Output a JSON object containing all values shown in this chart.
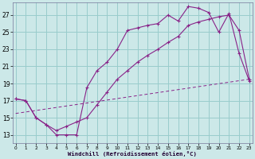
{
  "background_color": "#cce8e8",
  "grid_color": "#99cccc",
  "line_color": "#882288",
  "xlim": [
    -0.3,
    23.3
  ],
  "ylim": [
    12.0,
    28.5
  ],
  "xticks": [
    0,
    1,
    2,
    3,
    4,
    5,
    6,
    7,
    8,
    9,
    10,
    11,
    12,
    13,
    14,
    15,
    16,
    17,
    18,
    19,
    20,
    21,
    22,
    23
  ],
  "yticks": [
    13,
    15,
    17,
    19,
    21,
    23,
    25,
    27
  ],
  "xlabel": "Windchill (Refroidissement éolien,°C)",
  "line1_x": [
    0,
    1,
    2,
    3,
    4,
    5,
    6,
    7,
    8,
    9,
    10,
    11,
    12,
    13,
    14,
    15,
    16,
    17,
    18,
    19,
    20,
    21,
    22,
    23
  ],
  "line1_y": [
    17.2,
    17.0,
    15.0,
    14.2,
    13.0,
    13.0,
    13.0,
    18.5,
    20.5,
    21.5,
    23.0,
    25.2,
    25.5,
    25.8,
    26.0,
    27.0,
    26.3,
    28.0,
    27.8,
    27.3,
    25.0,
    27.2,
    22.5,
    19.3
  ],
  "line2_x": [
    0,
    1,
    2,
    3,
    4,
    5,
    6,
    7,
    8,
    9,
    10,
    11,
    12,
    13,
    14,
    15,
    16,
    17,
    18,
    19,
    20,
    21,
    22,
    23
  ],
  "line2_y": [
    17.2,
    17.0,
    15.0,
    14.2,
    13.5,
    14.0,
    14.5,
    15.0,
    16.5,
    18.0,
    19.5,
    20.5,
    21.5,
    22.3,
    23.0,
    23.8,
    24.5,
    25.8,
    26.2,
    26.5,
    26.8,
    27.0,
    25.2,
    19.5
  ],
  "line3_x": [
    0,
    23
  ],
  "line3_y": [
    15.5,
    19.5
  ]
}
